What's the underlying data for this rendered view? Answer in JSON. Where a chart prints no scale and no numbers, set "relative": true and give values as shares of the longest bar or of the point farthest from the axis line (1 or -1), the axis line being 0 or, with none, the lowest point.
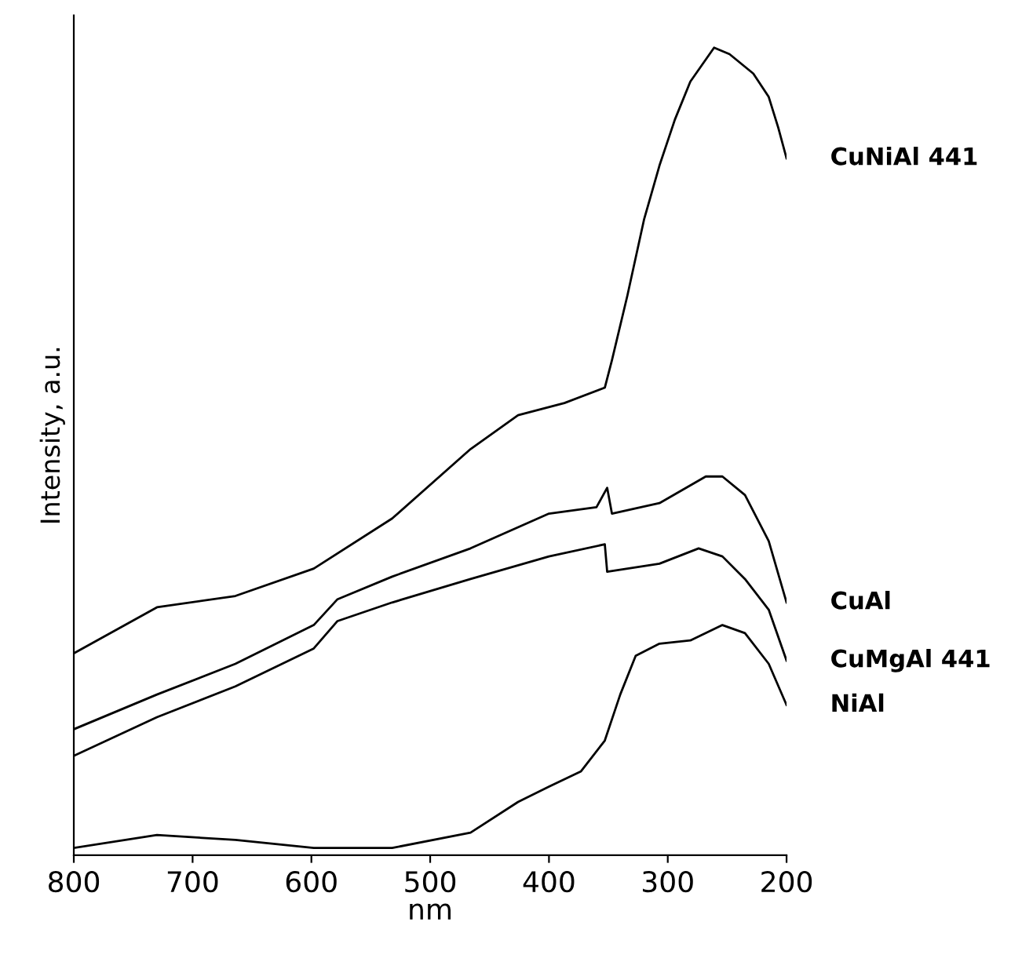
{
  "chart_data": {
    "type": "line",
    "xlabel": "nm",
    "ylabel": "Intensity, a.u.",
    "relative": true,
    "xlim": [
      800,
      200
    ],
    "xticks": [
      800,
      700,
      600,
      500,
      400,
      300,
      200
    ],
    "grid": false,
    "legend": false,
    "marker": "none",
    "line_style": "solid",
    "series": [
      {
        "name": "CuNiAl 441",
        "color": "#000000",
        "x": [
          800,
          730,
          664,
          598,
          532,
          466,
          426,
          387,
          353,
          347,
          334,
          320,
          307,
          294,
          281,
          261,
          248,
          228,
          215,
          207,
          200
        ],
        "values": [
          0.25,
          0.307,
          0.321,
          0.355,
          0.417,
          0.503,
          0.545,
          0.56,
          0.579,
          0.613,
          0.693,
          0.787,
          0.854,
          0.911,
          0.958,
          1,
          0.992,
          0.968,
          0.939,
          0.901,
          0.863
        ]
      },
      {
        "name": "CuAl",
        "color": "#000000",
        "x": [
          800,
          730,
          664,
          598,
          578,
          532,
          466,
          400,
          360,
          351,
          347,
          307,
          268,
          254,
          235,
          215,
          200
        ],
        "values": [
          0.156,
          0.199,
          0.237,
          0.285,
          0.317,
          0.345,
          0.38,
          0.423,
          0.431,
          0.455,
          0.423,
          0.436,
          0.469,
          0.469,
          0.446,
          0.389,
          0.313
        ]
      },
      {
        "name": "CuMgAl 441",
        "color": "#000000",
        "x": [
          800,
          730,
          664,
          598,
          578,
          532,
          466,
          400,
          353,
          351,
          307,
          274,
          254,
          235,
          215,
          200
        ],
        "values": [
          0.123,
          0.171,
          0.209,
          0.256,
          0.29,
          0.313,
          0.342,
          0.37,
          0.385,
          0.351,
          0.361,
          0.38,
          0.37,
          0.342,
          0.304,
          0.241
        ]
      },
      {
        "name": "NiAl",
        "color": "#000000",
        "x": [
          800,
          730,
          664,
          598,
          532,
          466,
          426,
          400,
          373,
          353,
          340,
          327,
          307,
          281,
          254,
          235,
          215,
          200
        ],
        "values": [
          0.009,
          0.025,
          0.019,
          0.009,
          0.009,
          0.028,
          0.066,
          0.085,
          0.104,
          0.142,
          0.199,
          0.247,
          0.262,
          0.266,
          0.285,
          0.275,
          0.237,
          0.186
        ]
      }
    ]
  }
}
